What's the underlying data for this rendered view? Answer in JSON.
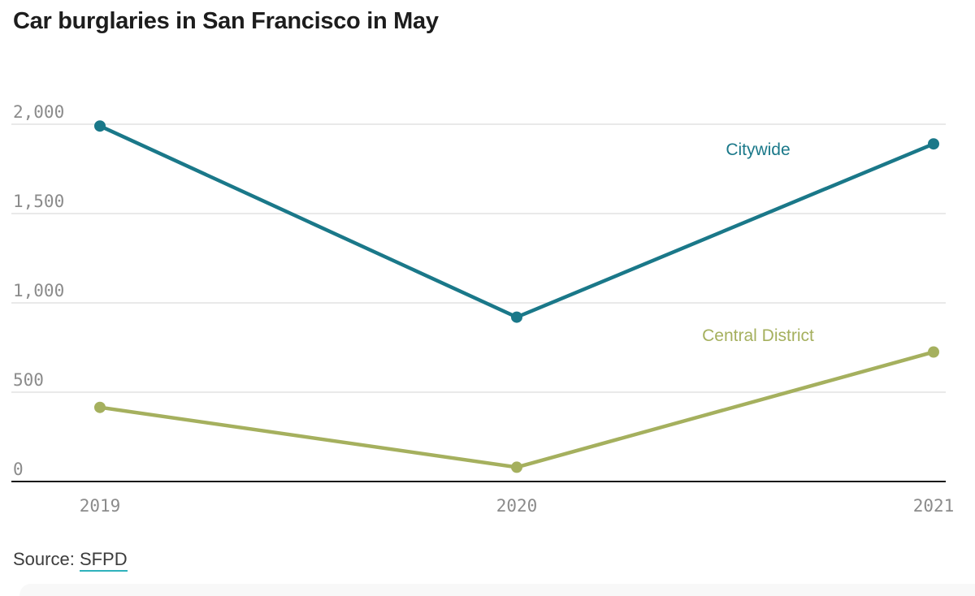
{
  "source": {
    "prefix": "Source: ",
    "link_text": "SFPD"
  },
  "colors": {
    "citywide": "#1a7889",
    "central_district": "#a5b05e",
    "grid": "#e2e2e2",
    "axis": "#1a1a1a",
    "tick_label": "#8b8b8b",
    "title_text": "#1d1d1d",
    "source_text": "#3c3c3c",
    "link_underline": "#2fb2bc"
  },
  "chart_data": {
    "type": "line",
    "title": "Car burglaries in San Francisco in May",
    "x": [
      2019,
      2020,
      2021
    ],
    "x_tick_labels": [
      "2019",
      "2020",
      "2021"
    ],
    "y_ticks": [
      0,
      500,
      1000,
      1500,
      2000
    ],
    "y_tick_labels": [
      "0",
      "500",
      "1,000",
      "1,500",
      "2,000"
    ],
    "ylim": [
      0,
      2000
    ],
    "grid": "horizontal-only",
    "legend_position": "inline-labels-near-lines",
    "series": [
      {
        "name": "Citywide",
        "color": "#1a7889",
        "values": [
          1990,
          920,
          1890
        ]
      },
      {
        "name": "Central District",
        "color": "#a5b05e",
        "values": [
          415,
          80,
          725
        ]
      }
    ]
  }
}
